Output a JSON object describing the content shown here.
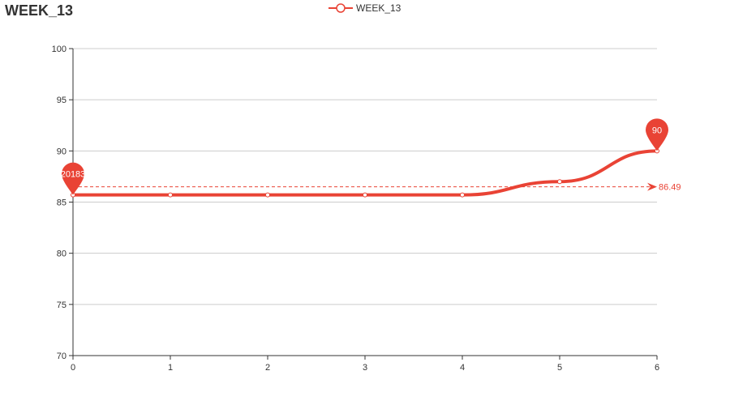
{
  "chart_data": {
    "type": "line",
    "title": "WEEK_13",
    "x": [
      0,
      1,
      2,
      3,
      4,
      5,
      6
    ],
    "series": [
      {
        "name": "WEEK_13",
        "values": [
          85.7,
          85.7,
          85.7,
          85.7,
          85.7,
          87.0,
          90.0
        ]
      }
    ],
    "ylim": [
      70,
      100
    ],
    "yticks": [
      70,
      75,
      80,
      85,
      90,
      95,
      100
    ],
    "grid": true,
    "legend": "top-center",
    "mark_points": [
      {
        "label": "20183",
        "x": 0,
        "y": 85.7
      },
      {
        "label": "90",
        "x": 6,
        "y": 90.0
      }
    ],
    "mark_line": {
      "label": "86.49",
      "value": 86.49
    },
    "colors": {
      "series": "#e94335",
      "grid": "#cccccc",
      "axis": "#333333"
    }
  }
}
